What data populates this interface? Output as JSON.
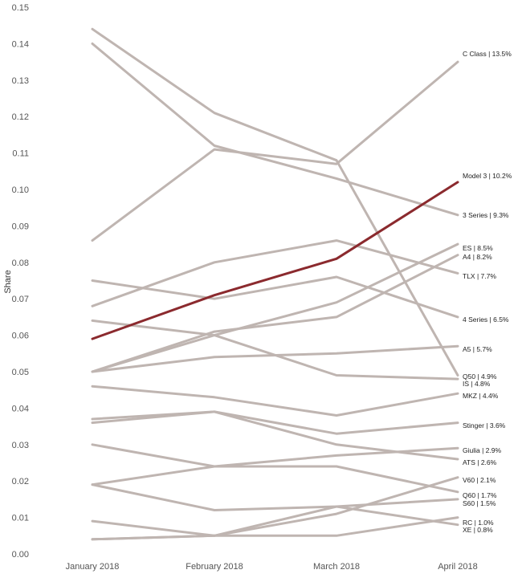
{
  "chart_data": {
    "type": "line",
    "ylabel": "Share",
    "xlabel": "",
    "ylim": [
      0,
      0.15
    ],
    "yticks": [
      "0.00",
      "0.01",
      "0.02",
      "0.03",
      "0.04",
      "0.05",
      "0.06",
      "0.07",
      "0.08",
      "0.09",
      "0.10",
      "0.11",
      "0.12",
      "0.13",
      "0.14",
      "0.15"
    ],
    "grid": false,
    "legend": "none",
    "categories": [
      "January 2018",
      "February 2018",
      "March 2018",
      "April 2018"
    ],
    "highlight_color": "#8b2a2e",
    "base_color": "#bfb5b1",
    "series": [
      {
        "name": "C Class",
        "label": "C Class | 13.5%",
        "values": [
          0.086,
          0.111,
          0.107,
          0.135
        ]
      },
      {
        "name": "3 Series",
        "label": "3 Series | 9.3%",
        "values": [
          0.14,
          0.112,
          0.103,
          0.093
        ]
      },
      {
        "name": "ES",
        "label": "ES | 8.5%",
        "values": [
          0.05,
          0.06,
          0.069,
          0.085
        ]
      },
      {
        "name": "A4",
        "label": "A4 | 8.2%",
        "values": [
          0.05,
          0.061,
          0.065,
          0.082
        ]
      },
      {
        "name": "TLX",
        "label": "TLX | 7.7%",
        "values": [
          0.068,
          0.08,
          0.086,
          0.077
        ]
      },
      {
        "name": "4 Series",
        "label": "4 Series | 6.5%",
        "values": [
          0.075,
          0.07,
          0.076,
          0.065
        ]
      },
      {
        "name": "A5",
        "label": "A5 | 5.7%",
        "values": [
          0.05,
          0.054,
          0.055,
          0.057
        ]
      },
      {
        "name": "Q50",
        "label": "Q50 | 4.9%",
        "values": [
          0.144,
          0.121,
          0.108,
          0.049
        ]
      },
      {
        "name": "IS",
        "label": "IS | 4.8%",
        "values": [
          0.064,
          0.06,
          0.049,
          0.048
        ]
      },
      {
        "name": "MKZ",
        "label": "MKZ | 4.4%",
        "values": [
          0.046,
          0.043,
          0.038,
          0.044
        ]
      },
      {
        "name": "Stinger",
        "label": "Stinger | 3.6%",
        "values": [
          0.037,
          0.039,
          0.033,
          0.036
        ]
      },
      {
        "name": "Giulia",
        "label": "Giulia | 2.9%",
        "values": [
          0.019,
          0.024,
          0.027,
          0.029
        ]
      },
      {
        "name": "ATS",
        "label": "ATS | 2.6%",
        "values": [
          0.036,
          0.039,
          0.03,
          0.026
        ]
      },
      {
        "name": "V60",
        "label": "V60 | 2.1%",
        "values": [
          0.004,
          0.005,
          0.011,
          0.021
        ]
      },
      {
        "name": "Q60",
        "label": "Q60 | 1.7%",
        "values": [
          0.03,
          0.024,
          0.024,
          0.017
        ]
      },
      {
        "name": "S60",
        "label": "S60 | 1.5%",
        "values": [
          0.019,
          0.012,
          0.013,
          0.015
        ]
      },
      {
        "name": "RC",
        "label": "RC | 1.0%",
        "values": [
          0.004,
          0.005,
          0.005,
          0.01
        ]
      },
      {
        "name": "XE",
        "label": "XE | 0.8%",
        "values": [
          0.009,
          0.005,
          0.013,
          0.008
        ]
      },
      {
        "name": "Model 3",
        "label": "Model 3 | 10.2%",
        "values": [
          0.059,
          0.071,
          0.081,
          0.102
        ],
        "highlight": true
      }
    ]
  }
}
